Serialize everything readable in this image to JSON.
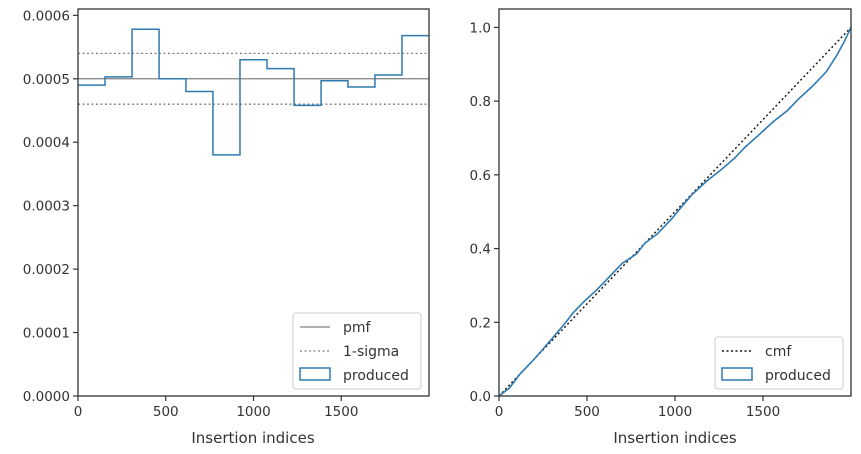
{
  "chart_data": [
    {
      "type": "step",
      "xlabel": "Insertion indices",
      "ylabel": "",
      "xlim": [
        0,
        2000
      ],
      "ylim": [
        0,
        0.00061
      ],
      "xticks": [
        0,
        500,
        1000,
        1500
      ],
      "xtick_labels": [
        "0",
        "500",
        "1000",
        "1500"
      ],
      "yticks": [
        0,
        0.0001,
        0.0002,
        0.0003,
        0.0004,
        0.0005,
        0.0006
      ],
      "ytick_labels": [
        "0.0000",
        "0.0001",
        "0.0002",
        "0.0003",
        "0.0004",
        "0.0005",
        "0.0006"
      ],
      "legend_position": "lower-right",
      "legend": [
        "pmf",
        "1-sigma",
        "produced"
      ],
      "pmf": 0.0005,
      "sigma_band": [
        0.00046,
        0.00054
      ],
      "bin_edges": [
        0,
        154,
        308,
        462,
        615,
        769,
        923,
        1077,
        1231,
        1385,
        1538,
        1692,
        1846,
        2000
      ],
      "produced": [
        0.00049,
        0.000503,
        0.000578,
        0.0005,
        0.00048,
        0.00038,
        0.00053,
        0.000516,
        0.000458,
        0.000497,
        0.000487,
        0.000506,
        0.000568
      ],
      "colors": {
        "pmf": "#808080",
        "sigma": "#808080",
        "produced": "#2e7ab0"
      }
    },
    {
      "type": "line",
      "xlabel": "Insertion indices",
      "ylabel": "",
      "xlim": [
        0,
        2000
      ],
      "ylim": [
        0,
        1.05
      ],
      "xticks": [
        0,
        500,
        1000,
        1500
      ],
      "xtick_labels": [
        "0",
        "500",
        "1000",
        "1500"
      ],
      "yticks": [
        0,
        0.2,
        0.4,
        0.6,
        0.8,
        1.0
      ],
      "ytick_labels": [
        "0.0",
        "0.2",
        "0.4",
        "0.6",
        "0.8",
        "1.0"
      ],
      "legend_position": "lower-right",
      "legend": [
        "cmf",
        "produced"
      ],
      "cmf": {
        "x": [
          0,
          2000
        ],
        "y": [
          0,
          1.0
        ]
      },
      "produced": {
        "x": [
          0,
          60,
          120,
          200,
          300,
          380,
          420,
          480,
          560,
          650,
          700,
          780,
          830,
          900,
          980,
          1040,
          1100,
          1180,
          1260,
          1340,
          1400,
          1480,
          1560,
          1640,
          1700,
          1780,
          1860,
          1920,
          1960,
          2000
        ],
        "y": [
          0,
          0.022,
          0.06,
          0.1,
          0.155,
          0.2,
          0.225,
          0.255,
          0.29,
          0.335,
          0.36,
          0.385,
          0.415,
          0.44,
          0.48,
          0.515,
          0.548,
          0.583,
          0.613,
          0.646,
          0.676,
          0.71,
          0.745,
          0.775,
          0.805,
          0.84,
          0.88,
          0.925,
          0.96,
          1.0
        ]
      },
      "colors": {
        "cmf": "#111111",
        "produced": "#2e7ab0"
      }
    }
  ]
}
